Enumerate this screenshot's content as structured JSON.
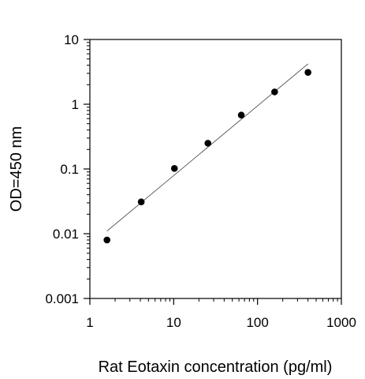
{
  "chart_data": {
    "type": "scatter",
    "title": "",
    "xlabel": "Rat Eotaxin concentration (pg/ml)",
    "ylabel": "OD=450 nm",
    "xscale": "log",
    "yscale": "log",
    "xlim": [
      1,
      1000
    ],
    "ylim": [
      0.001,
      10
    ],
    "x_ticks": [
      1,
      10,
      100,
      1000
    ],
    "x_tick_labels": [
      "1",
      "10",
      "100",
      "1000"
    ],
    "y_ticks": [
      0.001,
      0.01,
      0.1,
      1,
      10
    ],
    "y_tick_labels": [
      "0.001",
      "0.01",
      "0.1",
      "1",
      "10"
    ],
    "grid": false,
    "legend": "none",
    "series": [
      {
        "x": [
          1.6,
          4.1,
          10.2,
          25.6,
          64,
          160,
          400
        ],
        "y": [
          0.008,
          0.031,
          0.102,
          0.25,
          0.68,
          1.55,
          3.1
        ]
      }
    ],
    "fit_line": {
      "x": [
        1.6,
        400
      ],
      "y": [
        0.011,
        4.2
      ]
    },
    "colors": {
      "points": "#000000",
      "fit_line": "#555555",
      "axes": "#000000"
    }
  }
}
